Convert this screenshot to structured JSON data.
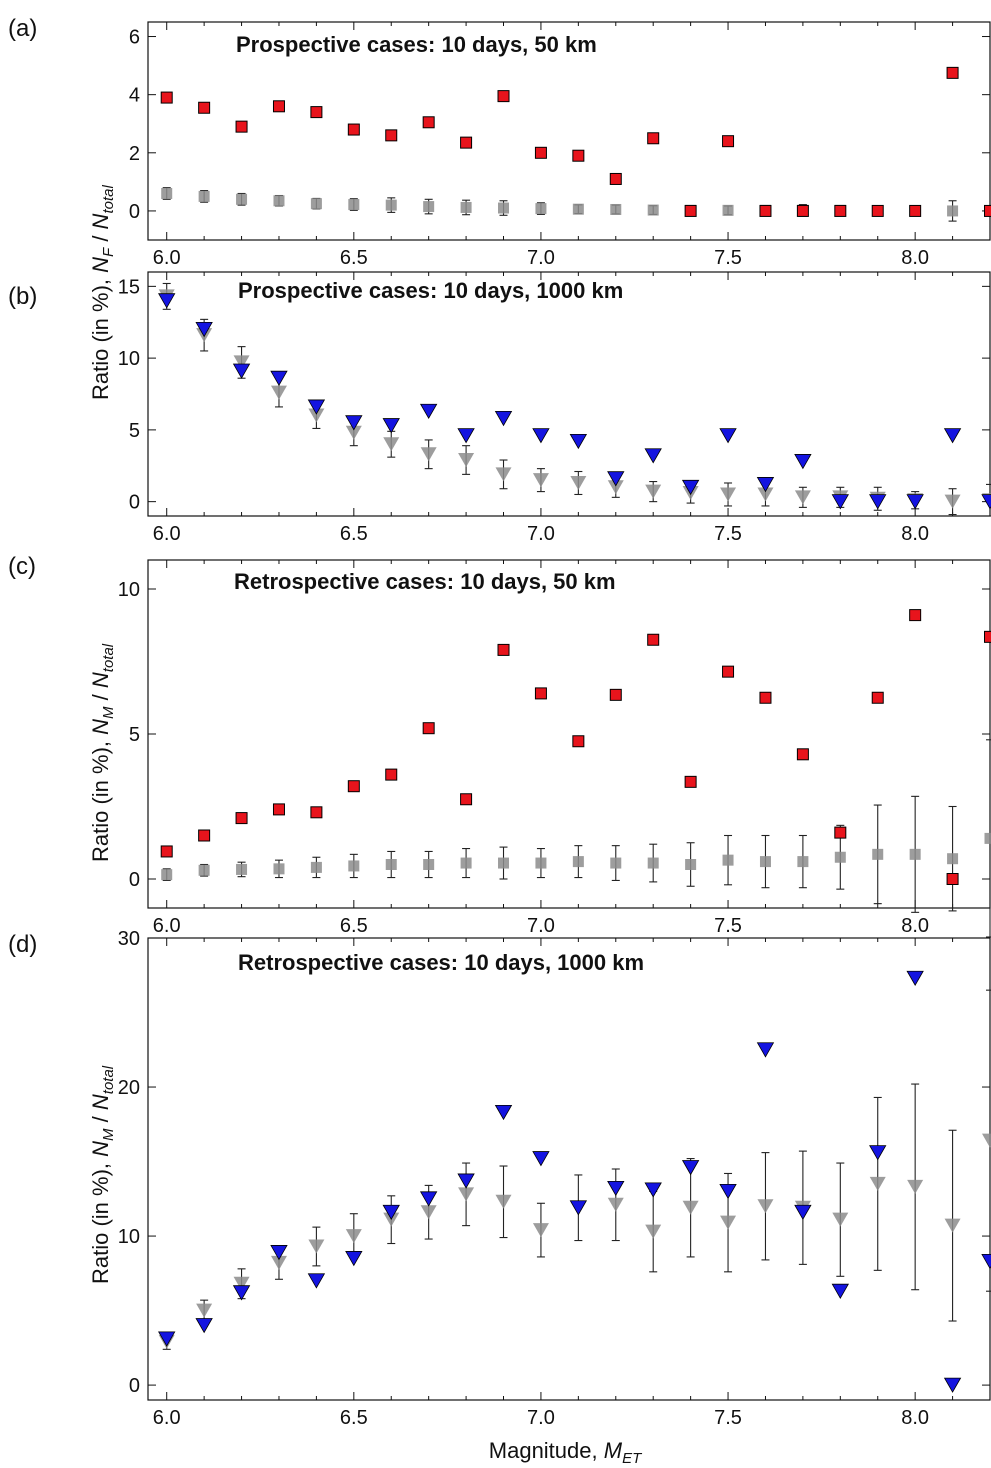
{
  "chart_data": [
    {
      "panel": "(a)",
      "type": "scatter",
      "title": "Prospective cases: 10 days, 50 km",
      "xlim": [
        5.95,
        8.2
      ],
      "ylim": [
        -1,
        6.5
      ],
      "yticks": [
        0,
        2,
        4,
        6
      ],
      "xticks": [
        6.0,
        6.5,
        7.0,
        7.5,
        8.0
      ],
      "series": [
        {
          "marker": "square",
          "color": "#e8141c",
          "x": [
            6.0,
            6.1,
            6.2,
            6.3,
            6.4,
            6.5,
            6.6,
            6.7,
            6.8,
            6.9,
            7.0,
            7.1,
            7.2,
            7.3,
            7.4,
            7.5,
            7.6,
            7.7,
            7.8,
            7.9,
            8.0,
            8.1,
            8.2
          ],
          "y": [
            3.9,
            3.55,
            2.9,
            3.6,
            3.4,
            2.8,
            2.6,
            3.05,
            2.35,
            3.95,
            2.0,
            1.9,
            1.1,
            2.5,
            0.0,
            2.4,
            0.0,
            0.0,
            0.0,
            0.0,
            0.0,
            4.75,
            0.0
          ]
        },
        {
          "marker": "square",
          "color": "#8c8c8c",
          "x": [
            6.0,
            6.1,
            6.2,
            6.3,
            6.4,
            6.5,
            6.6,
            6.7,
            6.8,
            6.9,
            7.0,
            7.1,
            7.2,
            7.3,
            7.4,
            7.5,
            7.6,
            7.7,
            7.8,
            7.9,
            8.0,
            8.1,
            8.2
          ],
          "y": [
            0.6,
            0.5,
            0.4,
            0.35,
            0.25,
            0.22,
            0.2,
            0.15,
            0.12,
            0.1,
            0.08,
            0.06,
            0.05,
            0.03,
            0.02,
            0.02,
            0.02,
            0.02,
            0.02,
            0.0,
            0.0,
            0.0,
            0.0
          ],
          "err": [
            0.2,
            0.2,
            0.2,
            0.18,
            0.18,
            0.2,
            0.25,
            0.25,
            0.25,
            0.25,
            0.2,
            0.15,
            0.15,
            0.15,
            0.15,
            0.15,
            0.15,
            0.2,
            0.15,
            0.0,
            0.0,
            0.35,
            0.0
          ]
        }
      ]
    },
    {
      "panel": "(b)",
      "type": "scatter",
      "title": "Prospective cases: 10 days, 1000 km",
      "xlim": [
        5.95,
        8.2
      ],
      "ylim": [
        -1,
        16
      ],
      "yticks": [
        0,
        5,
        10,
        15
      ],
      "xticks": [
        6.0,
        6.5,
        7.0,
        7.5,
        8.0
      ],
      "series": [
        {
          "marker": "triangle-down",
          "color": "#1414e0",
          "x": [
            6.0,
            6.1,
            6.2,
            6.3,
            6.4,
            6.5,
            6.6,
            6.7,
            6.8,
            6.9,
            7.0,
            7.1,
            7.2,
            7.3,
            7.4,
            7.5,
            7.6,
            7.7,
            7.8,
            7.9,
            8.0,
            8.1,
            8.2
          ],
          "y": [
            14.0,
            12.0,
            9.1,
            8.6,
            6.6,
            5.5,
            5.3,
            6.3,
            4.6,
            5.8,
            4.6,
            4.2,
            1.6,
            3.2,
            1.0,
            4.6,
            1.2,
            2.8,
            0.0,
            0.0,
            0.0,
            4.6,
            0.0
          ]
        },
        {
          "marker": "triangle-down",
          "color": "#8c8c8c",
          "x": [
            6.0,
            6.1,
            6.2,
            6.3,
            6.4,
            6.5,
            6.6,
            6.7,
            6.8,
            6.9,
            7.0,
            7.1,
            7.2,
            7.3,
            7.4,
            7.5,
            7.6,
            7.7,
            7.8,
            7.9,
            8.0,
            8.1,
            8.2
          ],
          "y": [
            14.3,
            11.6,
            9.7,
            7.6,
            6.0,
            4.8,
            4.0,
            3.3,
            2.9,
            1.9,
            1.5,
            1.3,
            1.0,
            0.7,
            0.6,
            0.5,
            0.5,
            0.3,
            0.3,
            0.2,
            0.1,
            0.0,
            0.1
          ],
          "err": [
            0.9,
            1.1,
            1.1,
            1.0,
            0.9,
            0.9,
            0.9,
            1.0,
            1.0,
            1.0,
            0.8,
            0.8,
            0.7,
            0.7,
            0.7,
            0.8,
            0.8,
            0.7,
            0.7,
            0.8,
            0.6,
            0.9,
            1.1
          ]
        }
      ]
    },
    {
      "panel": "(c)",
      "type": "scatter",
      "title": "Retrospective cases: 10 days, 50 km",
      "xlim": [
        5.95,
        8.2
      ],
      "ylim": [
        -1,
        11
      ],
      "yticks": [
        0,
        5,
        10
      ],
      "xticks": [
        6.0,
        6.5,
        7.0,
        7.5,
        8.0
      ],
      "series": [
        {
          "marker": "square",
          "color": "#e8141c",
          "x": [
            6.0,
            6.1,
            6.2,
            6.3,
            6.4,
            6.5,
            6.6,
            6.7,
            6.8,
            6.9,
            7.0,
            7.1,
            7.2,
            7.3,
            7.4,
            7.5,
            7.6,
            7.7,
            7.8,
            7.9,
            8.0,
            8.1,
            8.2
          ],
          "y": [
            0.95,
            1.5,
            2.1,
            2.4,
            2.3,
            3.2,
            3.6,
            5.2,
            2.75,
            7.9,
            6.4,
            4.75,
            6.35,
            8.25,
            3.35,
            7.15,
            6.25,
            4.3,
            1.6,
            6.25,
            9.1,
            0.0,
            8.35
          ]
        },
        {
          "marker": "square",
          "color": "#8c8c8c",
          "x": [
            6.0,
            6.1,
            6.2,
            6.3,
            6.4,
            6.5,
            6.6,
            6.7,
            6.8,
            6.9,
            7.0,
            7.1,
            7.2,
            7.3,
            7.4,
            7.5,
            7.6,
            7.7,
            7.8,
            7.9,
            8.0,
            8.1,
            8.2
          ],
          "y": [
            0.15,
            0.3,
            0.33,
            0.35,
            0.4,
            0.45,
            0.5,
            0.5,
            0.55,
            0.55,
            0.55,
            0.6,
            0.55,
            0.55,
            0.5,
            0.65,
            0.6,
            0.6,
            0.75,
            0.85,
            0.85,
            0.7,
            1.4
          ],
          "err": [
            0.2,
            0.2,
            0.25,
            0.3,
            0.35,
            0.4,
            0.45,
            0.45,
            0.5,
            0.55,
            0.5,
            0.55,
            0.6,
            0.65,
            0.75,
            0.85,
            0.9,
            0.9,
            1.1,
            1.7,
            2.0,
            1.8,
            3.4
          ]
        }
      ]
    },
    {
      "panel": "(d)",
      "type": "scatter",
      "title": "Retrospective cases: 10 days, 1000 km",
      "xlim": [
        5.95,
        8.2
      ],
      "ylim": [
        -1,
        30
      ],
      "yticks": [
        0,
        10,
        20,
        30
      ],
      "xticks": [
        6.0,
        6.5,
        7.0,
        7.5,
        8.0
      ],
      "series": [
        {
          "marker": "triangle-down",
          "color": "#1414e0",
          "x": [
            6.0,
            6.1,
            6.2,
            6.3,
            6.4,
            6.5,
            6.6,
            6.7,
            6.8,
            6.9,
            7.0,
            7.1,
            7.2,
            7.3,
            7.4,
            7.5,
            7.6,
            7.7,
            7.8,
            7.9,
            8.0,
            8.1,
            8.2
          ],
          "y": [
            3.1,
            4.0,
            6.2,
            8.9,
            7.0,
            8.5,
            11.6,
            12.5,
            13.7,
            18.3,
            15.2,
            11.9,
            13.2,
            13.1,
            14.6,
            13.0,
            22.5,
            11.6,
            6.3,
            15.6,
            27.3,
            0.0,
            8.3
          ]
        },
        {
          "marker": "triangle-down",
          "color": "#8c8c8c",
          "x": [
            6.0,
            6.1,
            6.2,
            6.3,
            6.4,
            6.5,
            6.6,
            6.7,
            6.8,
            6.9,
            7.0,
            7.1,
            7.2,
            7.3,
            7.4,
            7.5,
            7.6,
            7.7,
            7.8,
            7.9,
            8.0,
            8.1,
            8.2
          ],
          "y": [
            2.9,
            5.0,
            6.8,
            8.2,
            9.3,
            10.0,
            11.1,
            11.6,
            12.8,
            12.3,
            10.4,
            11.9,
            12.1,
            10.3,
            11.9,
            10.9,
            12.0,
            11.9,
            11.1,
            13.5,
            13.3,
            10.7,
            16.4
          ],
          "err": [
            0.5,
            0.7,
            1.0,
            1.1,
            1.3,
            1.5,
            1.6,
            1.8,
            2.1,
            2.4,
            1.8,
            2.2,
            2.4,
            2.7,
            3.3,
            3.3,
            3.6,
            3.8,
            3.8,
            5.8,
            6.9,
            6.4,
            10.1
          ]
        }
      ]
    }
  ],
  "labels": {
    "panel_a": "(a)",
    "panel_b": "(b)",
    "panel_c": "(c)",
    "panel_d": "(d)",
    "ylabel_ab_prefix": "Ratio (in %), ",
    "ylabel_ab_n": "N",
    "ylabel_ab_sub": "F",
    "ylabel_ab_slash": " / ",
    "ylabel_ab_ntotal": "N",
    "ylabel_ab_total": "total",
    "ylabel_cd_prefix": "Ratio (in %), ",
    "ylabel_cd_n": "N",
    "ylabel_cd_sub": "M",
    "ylabel_cd_slash": " / ",
    "ylabel_cd_ntotal": "N",
    "ylabel_cd_total": "total",
    "xlabel_prefix": "Magnitude, ",
    "xlabel_m": "M",
    "xlabel_sub": "ET"
  }
}
